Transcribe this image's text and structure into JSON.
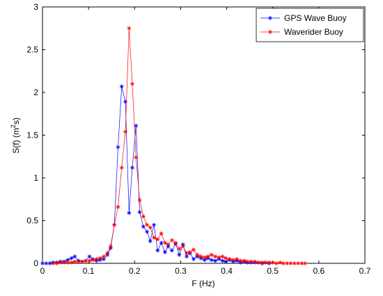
{
  "chart_data": {
    "type": "line",
    "xlabel": "F  (Hz)",
    "ylabel": [
      "S(f)  (m",
      "2",
      "s)"
    ],
    "xlim": [
      0,
      0.7
    ],
    "xticks": [
      0,
      0.1,
      0.2,
      0.3,
      0.4,
      0.5,
      0.6,
      0.7
    ],
    "ylim": [
      0,
      3
    ],
    "yticks": [
      0,
      0.5,
      1,
      1.5,
      2,
      2.5,
      3
    ],
    "legend": "upper right",
    "series": [
      {
        "name": "GPS Wave Buoy",
        "color": "#0000ff",
        "x": [
          0,
          0.008,
          0.016,
          0.023,
          0.031,
          0.039,
          0.047,
          0.055,
          0.063,
          0.07,
          0.078,
          0.086,
          0.094,
          0.102,
          0.109,
          0.117,
          0.125,
          0.133,
          0.141,
          0.148,
          0.156,
          0.164,
          0.172,
          0.18,
          0.188,
          0.195,
          0.203,
          0.211,
          0.219,
          0.227,
          0.234,
          0.242,
          0.25,
          0.258,
          0.266,
          0.273,
          0.281,
          0.289,
          0.297,
          0.305,
          0.313,
          0.32,
          0.328,
          0.336,
          0.344,
          0.352,
          0.359,
          0.367,
          0.375,
          0.383,
          0.391,
          0.398,
          0.406,
          0.414,
          0.422,
          0.43,
          0.438,
          0.445,
          0.453,
          0.461,
          0.469,
          0.477,
          0.484,
          0.492
        ],
        "values": [
          0,
          0,
          0,
          0.01,
          0.01,
          0.02,
          0.02,
          0.04,
          0.06,
          0.08,
          0.03,
          0.02,
          0.03,
          0.08,
          0.05,
          0.03,
          0.04,
          0.05,
          0.1,
          0.18,
          0.45,
          1.36,
          2.07,
          1.89,
          0.59,
          1.12,
          1.61,
          0.6,
          0.43,
          0.37,
          0.26,
          0.45,
          0.15,
          0.24,
          0.13,
          0.2,
          0.15,
          0.23,
          0.1,
          0.22,
          0.08,
          0.12,
          0.05,
          0.08,
          0.06,
          0.04,
          0.06,
          0.04,
          0.03,
          0.05,
          0.03,
          0.02,
          0.04,
          0.02,
          0.03,
          0.01,
          0.02,
          0.01,
          0.01,
          0.01,
          0.01,
          0,
          0.01,
          0
        ]
      },
      {
        "name": "Waverider Buoy",
        "color": "#ff0000",
        "x": [
          0.023,
          0.031,
          0.039,
          0.047,
          0.055,
          0.063,
          0.07,
          0.078,
          0.086,
          0.094,
          0.102,
          0.109,
          0.117,
          0.125,
          0.133,
          0.141,
          0.148,
          0.156,
          0.164,
          0.172,
          0.18,
          0.188,
          0.195,
          0.203,
          0.211,
          0.219,
          0.227,
          0.234,
          0.242,
          0.25,
          0.258,
          0.266,
          0.273,
          0.281,
          0.289,
          0.297,
          0.305,
          0.313,
          0.32,
          0.328,
          0.336,
          0.344,
          0.352,
          0.359,
          0.367,
          0.375,
          0.383,
          0.391,
          0.398,
          0.406,
          0.414,
          0.422,
          0.43,
          0.438,
          0.445,
          0.453,
          0.461,
          0.469,
          0.477,
          0.484,
          0.492,
          0.5,
          0.508,
          0.516,
          0.523,
          0.531,
          0.539,
          0.547,
          0.555,
          0.563,
          0.57
        ],
        "values": [
          0,
          0,
          0.01,
          0.01,
          0.01,
          0.01,
          0.02,
          0.02,
          0.02,
          0.03,
          0.03,
          0.04,
          0.05,
          0.06,
          0.08,
          0.12,
          0.2,
          0.45,
          0.66,
          1.12,
          1.54,
          2.75,
          2.1,
          1.24,
          0.74,
          0.55,
          0.45,
          0.42,
          0.3,
          0.28,
          0.35,
          0.24,
          0.22,
          0.27,
          0.24,
          0.17,
          0.2,
          0.12,
          0.13,
          0.16,
          0.1,
          0.08,
          0.07,
          0.08,
          0.1,
          0.08,
          0.07,
          0.08,
          0.06,
          0.05,
          0.04,
          0.05,
          0.03,
          0.03,
          0.02,
          0.02,
          0.02,
          0.01,
          0.01,
          0.01,
          0.01,
          0.01,
          0,
          0.01,
          0,
          0,
          0,
          0,
          0,
          0,
          0
        ]
      }
    ]
  }
}
